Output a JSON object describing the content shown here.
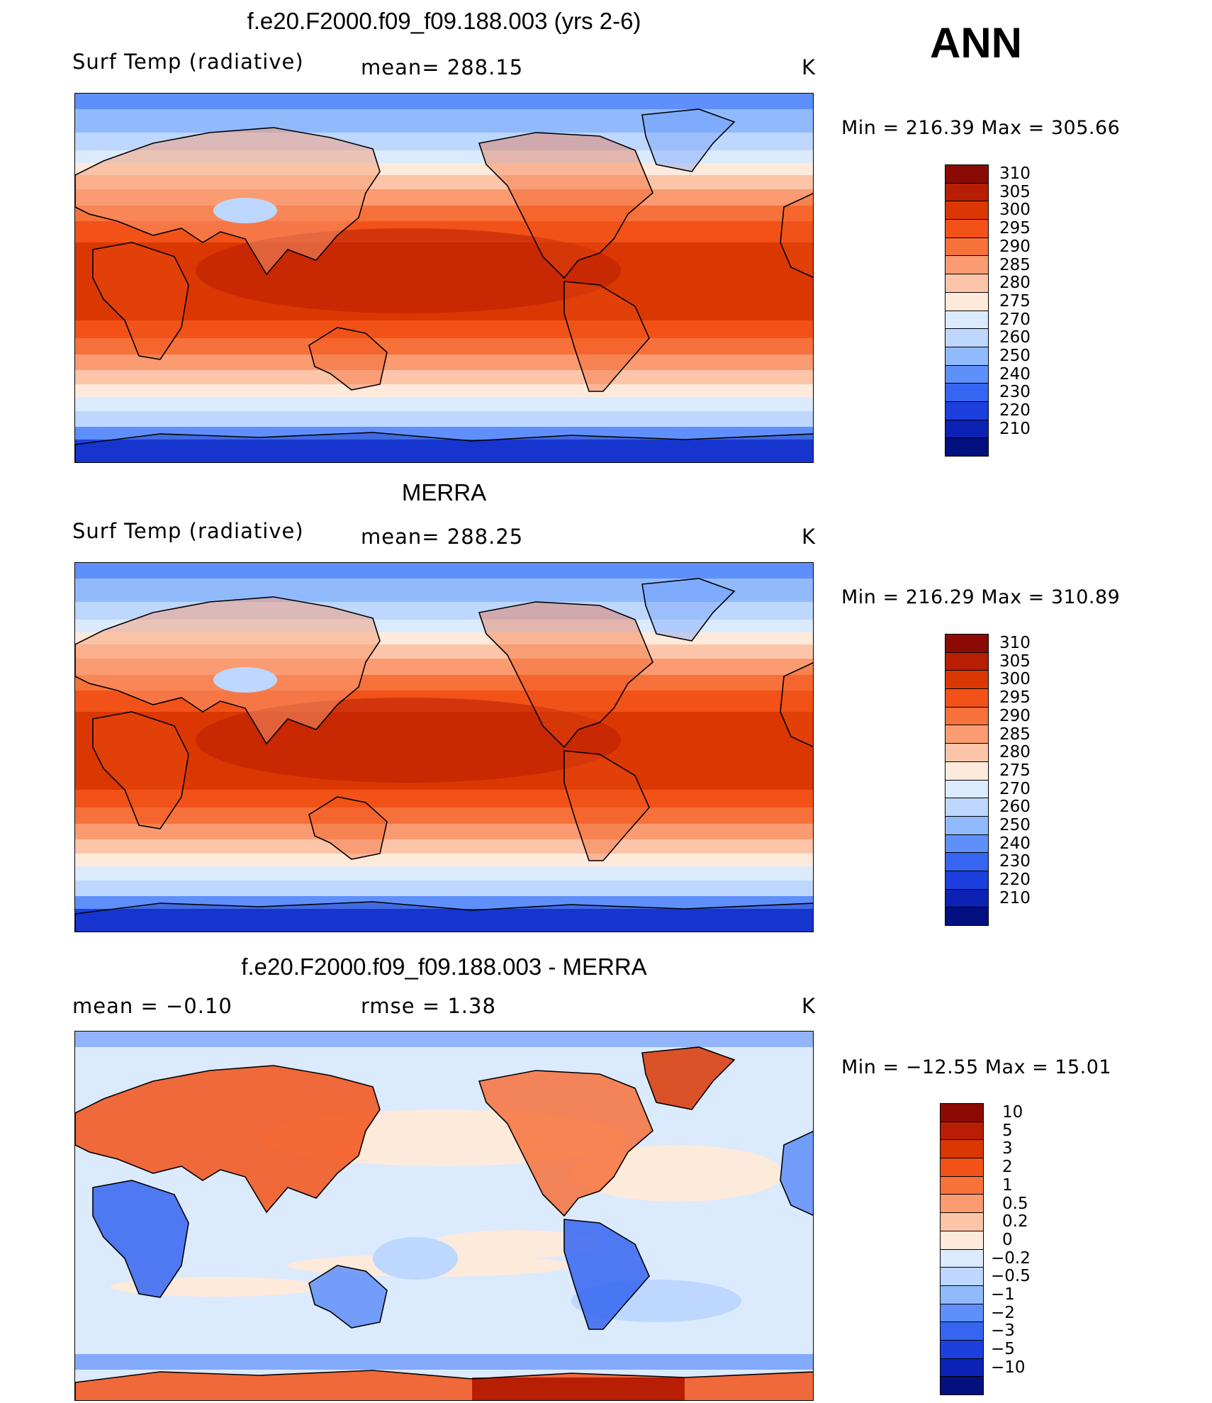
{
  "season": "ANN",
  "panels": [
    {
      "title": "f.e20.F2000.f09_f09.188.003 (yrs 2-6)",
      "left": "Surf Temp (radiative)",
      "mid": "mean= 288.15",
      "units": "K",
      "minmax": "Min = 216.39 Max = 305.66",
      "kind": "abs"
    },
    {
      "title": "MERRA",
      "left": "Surf Temp (radiative)",
      "mid": "mean= 288.25",
      "units": "K",
      "minmax": "Min = 216.29 Max = 310.89",
      "kind": "abs"
    },
    {
      "title": "f.e20.F2000.f09_f09.188.003 - MERRA",
      "left": "mean = −0.10",
      "mid": "rmse = 1.38",
      "units": "K",
      "minmax": "Min = −12.55 Max = 15.01",
      "kind": "diff"
    }
  ],
  "colorbars": {
    "abs": {
      "labels": [
        "310",
        "305",
        "300",
        "295",
        "290",
        "285",
        "280",
        "275",
        "270",
        "260",
        "250",
        "240",
        "230",
        "220",
        "210"
      ],
      "colors": [
        "#8c0a04",
        "#b81e03",
        "#db3702",
        "#f25218",
        "#f7713b",
        "#fa9b72",
        "#fcc5a9",
        "#fdeadb",
        "#dbeafd",
        "#bdd7fe",
        "#91bafd",
        "#5f8ffa",
        "#3565f1",
        "#1c3fde",
        "#0b22b5",
        "#03107f"
      ]
    },
    "diff": {
      "labels": [
        "10",
        "5",
        "3",
        "2",
        "1",
        "0.5",
        "0.2",
        "0",
        "−0.2",
        "−0.5",
        "−1",
        "−2",
        "−3",
        "−5",
        "−10"
      ],
      "colors": [
        "#8c0a04",
        "#b81e03",
        "#db3702",
        "#f25218",
        "#f7713b",
        "#fa9b72",
        "#fcc5a9",
        "#fdeadb",
        "#dbeafd",
        "#bdd7fe",
        "#91bafd",
        "#5f8ffa",
        "#3565f1",
        "#1c3fde",
        "#0b22b5",
        "#03107f"
      ]
    }
  }
}
